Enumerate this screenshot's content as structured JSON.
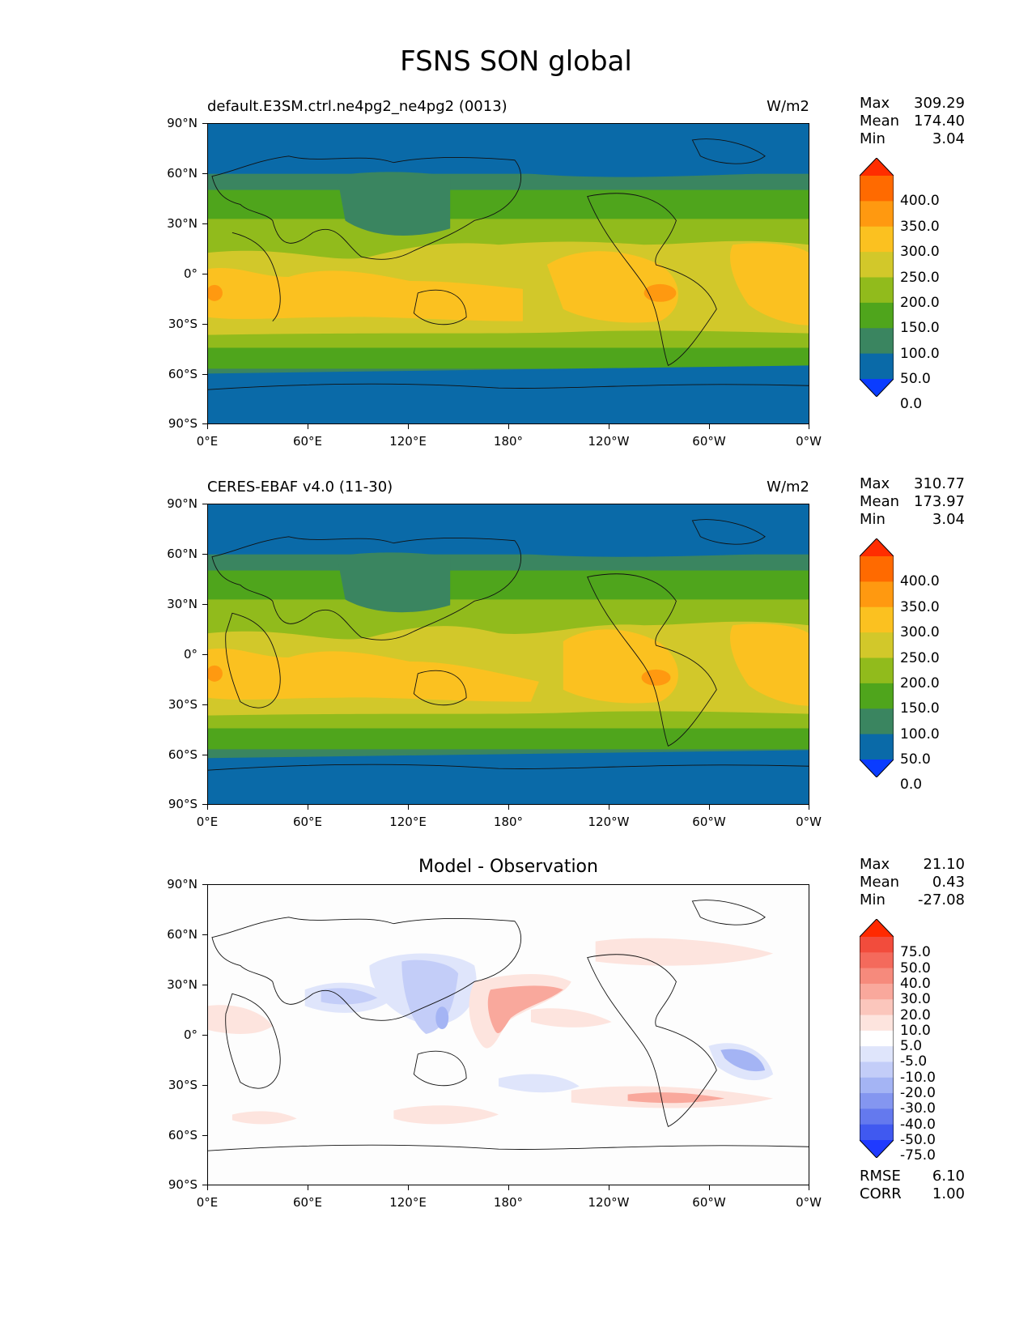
{
  "figure": {
    "title": "FSNS SON global"
  },
  "axes": {
    "y_labels": [
      "90°N",
      "60°N",
      "30°N",
      "0°",
      "30°S",
      "60°S",
      "90°S"
    ],
    "x_labels": [
      "0°E",
      "60°E",
      "120°E",
      "180°",
      "120°W",
      "60°W",
      "0°W"
    ]
  },
  "panels": [
    {
      "title_left": "default.E3SM.ctrl.ne4pg2_ne4pg2 (0013)",
      "title_right": "W/m2",
      "stats": {
        "max_label": "Max",
        "max": "309.29",
        "mean_label": "Mean",
        "mean": "174.40",
        "min_label": "Min",
        "min": "3.04"
      },
      "colorbar": {
        "labels": [
          "400.0",
          "350.0",
          "300.0",
          "250.0",
          "200.0",
          "150.0",
          "100.0",
          "50.0",
          "0.0"
        ],
        "colors": [
          "#ff2d00",
          "#ff6a00",
          "#ff9910",
          "#fbc120",
          "#d2c82a",
          "#91bb1c",
          "#4fa51c",
          "#3a8560",
          "#0a6aa8",
          "#0a3cff"
        ]
      }
    },
    {
      "title_left": "CERES-EBAF v4.0 (11-30)",
      "title_right": "W/m2",
      "stats": {
        "max_label": "Max",
        "max": "310.77",
        "mean_label": "Mean",
        "mean": "173.97",
        "min_label": "Min",
        "min": "3.04"
      },
      "colorbar": {
        "labels": [
          "400.0",
          "350.0",
          "300.0",
          "250.0",
          "200.0",
          "150.0",
          "100.0",
          "50.0",
          "0.0"
        ],
        "colors": [
          "#ff2d00",
          "#ff6a00",
          "#ff9910",
          "#fbc120",
          "#d2c82a",
          "#91bb1c",
          "#4fa51c",
          "#3a8560",
          "#0a6aa8",
          "#0a3cff"
        ]
      }
    },
    {
      "title_center": "Model - Observation",
      "stats": {
        "max_label": "Max",
        "max": "21.10",
        "mean_label": "Mean",
        "mean": "0.43",
        "min_label": "Min",
        "min": "-27.08"
      },
      "colorbar": {
        "labels": [
          "75.0",
          "50.0",
          "40.0",
          "30.0",
          "20.0",
          "10.0",
          "5.0",
          "-5.0",
          "-10.0",
          "-20.0",
          "-30.0",
          "-40.0",
          "-50.0",
          "-75.0"
        ],
        "colors": [
          "#ff2a00",
          "#f24c3c",
          "#f46a5c",
          "#f68a7c",
          "#f9a89c",
          "#fbc6bc",
          "#fde4de",
          "#ffffff",
          "#dfe5fb",
          "#c3cdf8",
          "#a4b4f4",
          "#8496f0",
          "#6479ee",
          "#4059f0",
          "#1f3aff"
        ]
      },
      "metrics": {
        "rmse_label": "RMSE",
        "rmse": "6.10",
        "corr_label": "CORR",
        "corr": "1.00"
      }
    }
  ]
}
